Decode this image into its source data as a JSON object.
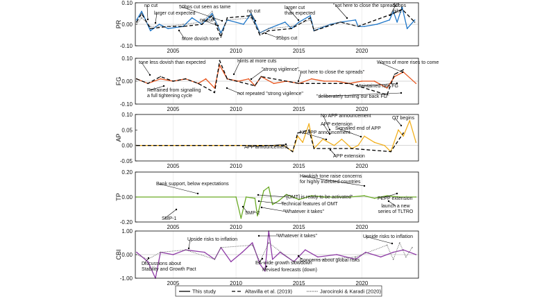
{
  "chart_data": {
    "type": "line",
    "x_range": [
      2002,
      2024.5
    ],
    "x_ticks": [
      2005,
      2010,
      2015,
      2020
    ],
    "legend": {
      "placement": "bottom",
      "items": [
        {
          "label": "This study",
          "style": "solid"
        },
        {
          "label": "Altavilla et al. (2019)",
          "style": "dashed"
        },
        {
          "label": "Jarocinski & Karadi (2020)",
          "style": "dotted"
        }
      ]
    },
    "panels": [
      {
        "id": "PR",
        "ylabel": "PR",
        "color": "#1f77c9",
        "ylim": [
          -0.1,
          0.1
        ],
        "yticks": [
          "0.10",
          "0.00",
          "-0.10"
        ],
        "series": [
          {
            "name": "This study",
            "x": [
              2002.1,
              2002.5,
              2003.2,
              2003.9,
              2004.6,
              2005.8,
              2006.5,
              2007.3,
              2008.1,
              2008.8,
              2009.3,
              2010.6,
              2011.2,
              2011.9,
              2012.6,
              2013.9,
              2014.4,
              2015.0,
              2015.9,
              2016.2,
              2017.5,
              2018.3,
              2019.5,
              2019.7,
              2020.2,
              2021.2,
              2022.2,
              2022.5,
              2022.8,
              2023.2,
              2023.6,
              2024.2
            ],
            "y": [
              0.02,
              0.06,
              -0.03,
              0.0,
              -0.02,
              -0.01,
              0.03,
              0.0,
              0.05,
              -0.04,
              0.02,
              0.0,
              0.05,
              -0.04,
              -0.02,
              0.01,
              -0.02,
              0.01,
              0.04,
              -0.03,
              0.0,
              0.01,
              0.02,
              -0.01,
              -0.01,
              0.0,
              0.02,
              0.06,
              0.01,
              0.08,
              -0.02,
              0.02
            ]
          },
          {
            "name": "Altavilla et al. (2019)",
            "x": [
              2002.1,
              2002.5,
              2003.2,
              2004.6,
              2005.8,
              2007.3,
              2008.1,
              2008.8,
              2009.3,
              2011.2,
              2011.9,
              2012.6,
              2014.4,
              2015.9,
              2016.2,
              2018.3,
              2019.7,
              2022.5,
              2023.2,
              2024.2
            ],
            "y": [
              0.01,
              0.05,
              -0.02,
              -0.01,
              -0.01,
              0.0,
              0.04,
              -0.06,
              0.03,
              0.04,
              -0.05,
              -0.03,
              -0.02,
              0.03,
              -0.03,
              0.01,
              -0.01,
              0.05,
              0.07,
              0.01
            ]
          },
          {
            "name": "Jarocinski & Karadi (2020)",
            "x": [
              2002.1,
              2002.5,
              2003.2,
              2004.6,
              2005.8,
              2007.3,
              2008.1,
              2008.8,
              2009.3,
              2011.2,
              2011.9,
              2012.6,
              2014.4,
              2015.9,
              2016.2,
              2018.3,
              2019.7
            ],
            "y": [
              0.0,
              0.03,
              -0.01,
              -0.01,
              0.0,
              0.01,
              0.06,
              -0.05,
              0.02,
              0.03,
              -0.04,
              -0.02,
              -0.01,
              0.02,
              -0.02,
              0.01,
              -0.01
            ]
          }
        ],
        "annotations": [
          "no cut",
          "larger cut expected",
          "50bps cut seen as tame",
          "no cut",
          "no cut",
          "More dovish tone",
          "larger cut than expected",
          "25bps cut",
          "\"not here to close the spreads\"",
          "50bps hike"
        ]
      },
      {
        "id": "FG",
        "ylabel": "FG",
        "color": "#e8541c",
        "ylim": [
          -0.1,
          0.1
        ],
        "yticks": [
          "0.10",
          "0.00",
          "-0.10"
        ],
        "series": [
          {
            "name": "This study",
            "x": [
              2002.1,
              2003.0,
              2004.0,
              2005.0,
              2006.0,
              2007.0,
              2007.6,
              2008.3,
              2008.7,
              2009.3,
              2010.2,
              2011.0,
              2011.5,
              2012.0,
              2013.0,
              2014.0,
              2015.0,
              2016.0,
              2017.0,
              2018.0,
              2019.0,
              2020.0,
              2021.0,
              2022.0,
              2022.6,
              2023.3,
              2024.3
            ],
            "y": [
              0.01,
              -0.01,
              0.01,
              0.0,
              0.01,
              -0.01,
              0.01,
              -0.03,
              0.07,
              0.01,
              0.0,
              0.01,
              -0.02,
              0.02,
              -0.01,
              0.0,
              -0.01,
              0.01,
              0.0,
              0.0,
              -0.01,
              0.0,
              0.0,
              -0.03,
              0.02,
              0.04,
              -0.01
            ]
          },
          {
            "name": "Altavilla et al. (2019)",
            "x": [
              2002.1,
              2003.0,
              2004.0,
              2005.0,
              2006.0,
              2007.0,
              2008.3,
              2008.7,
              2009.3,
              2011.5,
              2012.0,
              2015.0,
              2019.0,
              2022.0,
              2022.6,
              2023.3
            ],
            "y": [
              0.01,
              -0.01,
              0.02,
              0.0,
              0.01,
              -0.01,
              -0.05,
              0.09,
              0.01,
              -0.02,
              0.02,
              -0.01,
              -0.01,
              -0.06,
              0.03,
              0.05
            ]
          },
          {
            "name": "Jarocinski & Karadi (2020)",
            "x": [],
            "y": []
          }
        ],
        "annotations": [
          "tone less dovish than expected",
          "Hints at more cuts",
          "\"strong vigilence\"",
          "\"not here to close the spreads\"",
          "Warns of more rises to come",
          "Refrained from signalling a full tightening cycle",
          "not repeated \"strong vigilence\"",
          "Maintained rate FG",
          "\"deliberately turning our back FG\""
        ]
      },
      {
        "id": "AP",
        "ylabel": "AP",
        "color": "#f2b01e",
        "ylim": [
          -0.05,
          0.1
        ],
        "yticks": [
          "0.10",
          "0.05",
          "0.00",
          "-0.05"
        ],
        "series": [
          {
            "name": "This study",
            "x": [
              2002.1,
              2013.8,
              2014.5,
              2014.9,
              2015.3,
              2015.8,
              2016.2,
              2016.9,
              2017.8,
              2018.4,
              2019.2,
              2019.7,
              2020.2,
              2021.0,
              2021.8,
              2022.3,
              2022.9,
              2023.3,
              2023.8,
              2024.3
            ],
            "y": [
              0.0,
              0.0,
              -0.02,
              0.03,
              0.01,
              0.07,
              -0.01,
              0.02,
              0.0,
              0.02,
              -0.01,
              0.0,
              0.03,
              0.01,
              0.0,
              -0.02,
              0.05,
              0.03,
              0.08,
              0.01
            ]
          },
          {
            "name": "Altavilla et al. (2019)",
            "x": [
              2002.1,
              2013.8,
              2014.5,
              2014.9,
              2015.8,
              2016.2,
              2019.2,
              2022.3,
              2023.3
            ],
            "y": [
              0.0,
              0.0,
              -0.02,
              0.04,
              0.05,
              -0.01,
              -0.01,
              -0.02,
              0.04
            ]
          },
          {
            "name": "Jarocinski & Karadi (2020)",
            "x": [],
            "y": []
          }
        ],
        "annotations": [
          "No APP announcement",
          "APP extension",
          "No APP announcement",
          "QT begins",
          "Signalled end of APP",
          "APP announcement",
          "APP extension"
        ]
      },
      {
        "id": "TP",
        "ylabel": "TP",
        "color": "#6aaa25",
        "ylim": [
          -0.2,
          0.2
        ],
        "yticks": [
          "0.20",
          "0.00",
          "-0.20"
        ],
        "series": [
          {
            "name": "This study",
            "x": [
              2002.1,
              2010.0,
              2010.4,
              2010.8,
              2011.5,
              2011.7,
              2012.2,
              2012.6,
              2012.9,
              2013.4,
              2014.0,
              2015.0,
              2016.0,
              2017.0,
              2019.0,
              2020.2,
              2021.0,
              2022.0,
              2023.0,
              2024.3
            ],
            "y": [
              0.0,
              0.0,
              -0.17,
              0.0,
              -0.01,
              -0.15,
              0.05,
              0.08,
              -0.06,
              -0.03,
              0.02,
              -0.02,
              0.01,
              0.0,
              0.0,
              0.01,
              -0.01,
              0.01,
              0.0,
              0.0
            ]
          },
          {
            "name": "Altavilla et al. (2019)",
            "x": [],
            "y": []
          },
          {
            "name": "Jarocinski & Karadi (2020)",
            "x": [],
            "y": []
          }
        ],
        "annotations": [
          "Bank support, below expectations",
          "Hawkish tone raise concerns for highly indebted countries",
          "SMP-1",
          "SMP-2",
          "\"[OMT] is ready to be activated\"",
          "Technical features of OMT",
          "\"Whatever it takes\"",
          "PEPP extension",
          "launch a new series of TLTRO"
        ]
      },
      {
        "id": "CBI",
        "ylabel": "CBI",
        "color": "#8e3aa6",
        "ylim": [
          -1.0,
          1.0
        ],
        "yticks": [
          "1.00",
          "0.00",
          "-1.00"
        ],
        "series": [
          {
            "name": "This study",
            "x": [
              2002.1,
              2003.0,
              2003.6,
              2004.0,
              2005.0,
              2006.0,
              2007.5,
              2008.3,
              2008.8,
              2009.6,
              2010.5,
              2011.3,
              2011.9,
              2012.3,
              2012.6,
              2012.9,
              2013.5,
              2014.6,
              2015.5,
              2016.5,
              2018.0,
              2019.5,
              2020.3,
              2021.5,
              2022.5,
              2023.3,
              2024.3
            ],
            "y": [
              0.1,
              -0.3,
              -1.0,
              0.1,
              0.0,
              0.2,
              0.1,
              -0.2,
              0.3,
              -0.3,
              0.1,
              0.5,
              -0.4,
              -0.7,
              1.0,
              -0.2,
              0.1,
              -0.3,
              0.2,
              -0.1,
              0.0,
              -0.2,
              0.1,
              -0.1,
              0.1,
              0.2,
              0.0
            ]
          },
          {
            "name": "Altavilla et al. (2019)",
            "x": [],
            "y": []
          },
          {
            "name": "Jarocinski & Karadi (2020)",
            "x": [
              2002.1,
              2003.0,
              2004.0,
              2006.0,
              2008.3,
              2008.8,
              2011.3,
              2011.9,
              2012.6,
              2014.6,
              2019.5,
              2022.0,
              2022.5,
              2023.0,
              2023.5,
              2024.0
            ],
            "y": [
              0.0,
              -0.2,
              0.1,
              0.2,
              -0.2,
              0.3,
              0.4,
              -0.3,
              0.5,
              -0.3,
              -0.1,
              0.4,
              -0.2,
              0.5,
              -0.1,
              0.3
            ]
          }
        ],
        "annotations": [
          "Upside risks to inflation",
          "\"Whatever it takes\"",
          "Upside risks to inflation",
          "Discussions about Stability and Growth Pact",
          "EA-wide growth slowdown",
          "Revised forecasts (down)",
          "Concerns about global risks"
        ]
      }
    ]
  }
}
